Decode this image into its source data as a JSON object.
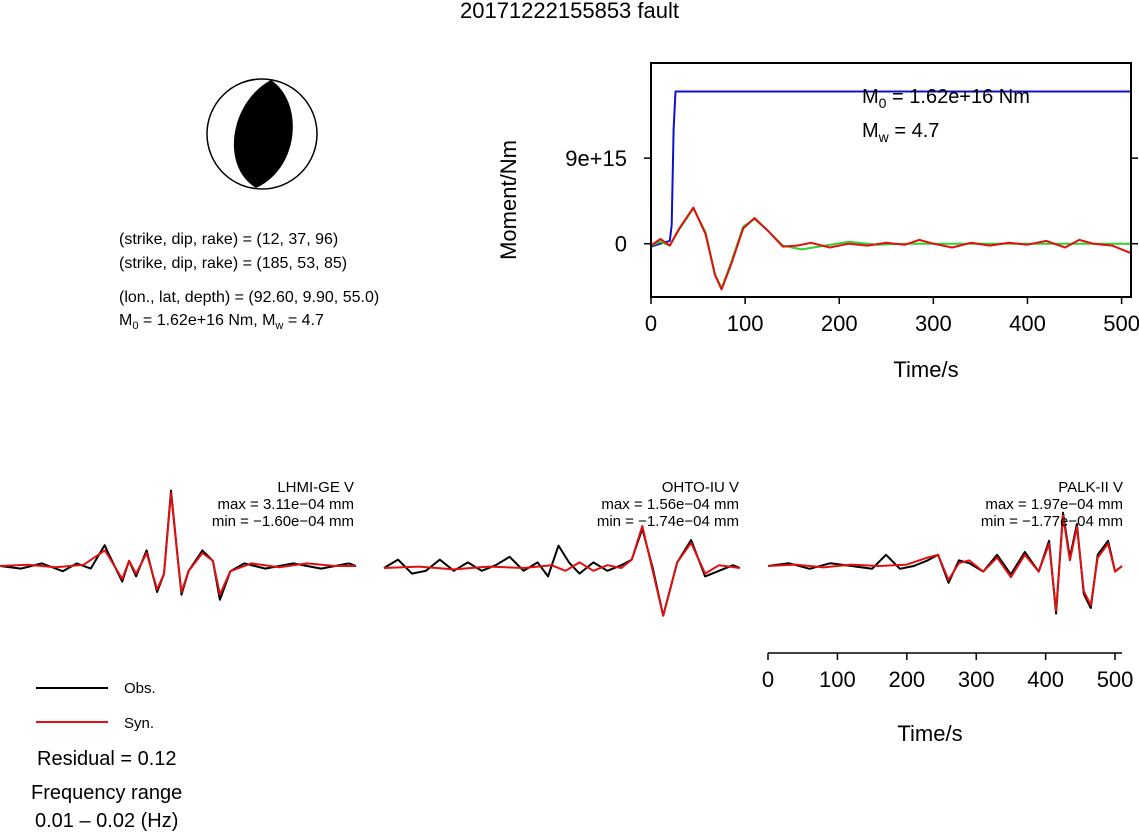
{
  "title": "20171222155853 fault",
  "info": {
    "strike_dip_rake_1": "(strike, dip, rake) = (12, 37, 96)",
    "strike_dip_rake_2": "(strike, dip, rake) = (185, 53, 85)",
    "lon_lat_depth": "(lon., lat, depth) = (92.60, 9.90, 55.0)",
    "m0_prefix": "M",
    "m0_sub": "0",
    "m0_text": " = 1.62e+16 Nm, M",
    "mw_sub": "w",
    "mw_text": " = 4.7"
  },
  "legend": {
    "obs_label": "Obs.",
    "syn_label": "Syn.",
    "residual": "Residual = 0.12",
    "freq_title": "Frequency range",
    "freq_value": "0.01 – 0.02 (Hz)"
  },
  "colors": {
    "obs": "#000000",
    "syn": "#e01010",
    "moment": "#1010d0",
    "stf": "#30d030",
    "stf_syn": "#e01010"
  },
  "chart_data": [
    {
      "type": "line",
      "title": "",
      "xlabel": "Time/s",
      "ylabel": "Moment/Nm",
      "xlim": [
        0,
        510
      ],
      "ylim": [
        -5600000000000000.0,
        1.9e+16
      ],
      "x_ticks": [
        0,
        100,
        200,
        300,
        400,
        500
      ],
      "x_tick_labels": [
        "0",
        "100",
        "200",
        "300",
        "400",
        "500"
      ],
      "y_ticks": [
        0,
        9000000000000000.0
      ],
      "y_tick_labels": [
        "0",
        "9e+15"
      ],
      "annotation_m0": {
        "prefix": "M",
        "sub": "0",
        "text": " = 1.62e+16 Nm"
      },
      "annotation_mw": {
        "prefix": "M",
        "sub": "w",
        "text": " = 4.7"
      },
      "series": [
        {
          "color": "#1010d0",
          "x": [
            0,
            10,
            20,
            22,
            24,
            26,
            510
          ],
          "y": [
            -300000000000000.0,
            0,
            300000000000000.0,
            2000000000000000.0,
            1.2e+16,
            1.6e+16,
            1.6e+16
          ]
        },
        {
          "color": "#30d030",
          "x": [
            0,
            10,
            20,
            30,
            45,
            58,
            68,
            75,
            85,
            98,
            110,
            125,
            140,
            160,
            185,
            210,
            240,
            270,
            300,
            330,
            360,
            390,
            420,
            450,
            480,
            510
          ],
          "y": [
            -200000000000000.0,
            200000000000000.0,
            -200000000000000.0,
            1500000000000000.0,
            3700000000000000.0,
            1200000000000000.0,
            -3200000000000000.0,
            -4700000000000000.0,
            -2000000000000000.0,
            1800000000000000.0,
            2600000000000000.0,
            1300000000000000.0,
            -200000000000000.0,
            -600000000000000.0,
            -200000000000000.0,
            200000000000000.0,
            -100000000000000.0,
            0,
            0,
            0,
            0,
            0,
            0,
            0,
            0,
            0
          ]
        },
        {
          "color": "#e01010",
          "x": [
            0,
            10,
            20,
            30,
            45,
            58,
            68,
            75,
            85,
            98,
            110,
            125,
            140,
            155,
            170,
            190,
            210,
            230,
            250,
            270,
            285,
            300,
            320,
            340,
            360,
            380,
            400,
            420,
            440,
            455,
            470,
            490,
            510
          ],
          "y": [
            -200000000000000.0,
            500000000000000.0,
            -200000000000000.0,
            1600000000000000.0,
            3800000000000000.0,
            1000000000000000.0,
            -3300000000000000.0,
            -4800000000000000.0,
            -2200000000000000.0,
            1600000000000000.0,
            2700000000000000.0,
            1300000000000000.0,
            -300000000000000.0,
            -200000000000000.0,
            100000000000000.0,
            -400000000000000.0,
            0,
            -200000000000000.0,
            100000000000000.0,
            -100000000000000.0,
            400000000000000.0,
            0,
            -400000000000000.0,
            100000000000000.0,
            -200000000000000.0,
            100000000000000.0,
            -100000000000000.0,
            300000000000000.0,
            -400000000000000.0,
            400000000000000.0,
            0,
            -200000000000000.0,
            -1000000000000000.0
          ]
        }
      ]
    },
    {
      "type": "line",
      "station": "LHMI-GE V",
      "max": "max = 3.11e−04 mm",
      "min": "min = −1.60e−04 mm",
      "xlim": [
        0,
        510
      ],
      "ylim": [
        -1.6,
        3.11
      ],
      "series": [
        {
          "name": "Obs.",
          "color": "#000000",
          "x": [
            0,
            30,
            60,
            90,
            110,
            130,
            150,
            155,
            175,
            185,
            195,
            210,
            225,
            235,
            245,
            255,
            260,
            270,
            290,
            305,
            315,
            330,
            350,
            380,
            420,
            460,
            500,
            510
          ],
          "y": [
            0,
            -0.1,
            0.1,
            -0.2,
            0.1,
            -0.1,
            0.8,
            0.5,
            -0.6,
            0.2,
            -0.4,
            0.6,
            -1.0,
            -0.3,
            2.9,
            0.2,
            -1.1,
            -0.2,
            0.6,
            0.2,
            -1.3,
            -0.2,
            0.1,
            -0.1,
            0.1,
            -0.1,
            0.1,
            0
          ]
        },
        {
          "name": "Syn.",
          "color": "#e01010",
          "x": [
            0,
            40,
            80,
            120,
            150,
            155,
            175,
            185,
            195,
            210,
            225,
            235,
            245,
            255,
            260,
            270,
            290,
            305,
            315,
            330,
            360,
            400,
            440,
            480,
            510
          ],
          "y": [
            0,
            0.05,
            -0.05,
            0.05,
            0.6,
            0.4,
            -0.5,
            0.2,
            -0.3,
            0.5,
            -0.9,
            -0.3,
            2.8,
            0.2,
            -1.0,
            -0.2,
            0.5,
            0.2,
            -1.1,
            -0.2,
            0.1,
            -0.05,
            0.1,
            0,
            0
          ]
        }
      ]
    },
    {
      "type": "line",
      "station": "OHTO-IU V",
      "max": "max = 1.56e−04 mm",
      "min": "min = −1.74e−04 mm",
      "xlim": [
        0,
        510
      ],
      "ylim": [
        -1.74,
        1.56
      ],
      "series": [
        {
          "name": "Obs.",
          "color": "#000000",
          "x": [
            0,
            20,
            40,
            60,
            80,
            100,
            120,
            140,
            160,
            180,
            200,
            220,
            235,
            250,
            265,
            280,
            300,
            320,
            340,
            355,
            370,
            385,
            400,
            420,
            440,
            460,
            480,
            500,
            510
          ],
          "y": [
            0,
            0.3,
            -0.2,
            -0.1,
            0.3,
            -0.1,
            0.2,
            -0.1,
            0.1,
            0.4,
            -0.1,
            0.2,
            -0.3,
            0.8,
            0.2,
            -0.2,
            0.2,
            -0.1,
            0.1,
            0.3,
            1.4,
            0.0,
            -1.7,
            0.2,
            1.0,
            -0.3,
            -0.1,
            0.1,
            0
          ]
        },
        {
          "name": "Syn.",
          "color": "#e01010",
          "x": [
            0,
            50,
            100,
            150,
            200,
            240,
            260,
            280,
            300,
            320,
            340,
            355,
            370,
            385,
            400,
            420,
            440,
            460,
            480,
            510
          ],
          "y": [
            0,
            0.05,
            -0.05,
            0.05,
            0,
            0.1,
            -0.1,
            0.2,
            -0.1,
            0.1,
            0.0,
            0.3,
            1.5,
            -0.1,
            -1.7,
            0.2,
            0.9,
            -0.2,
            0.1,
            0
          ]
        }
      ]
    },
    {
      "type": "line",
      "station": "PALK-II V",
      "max": "max = 1.97e−04 mm",
      "min": "min = −1.77e−04 mm",
      "xlabel": "Time/s",
      "xlim": [
        0,
        510
      ],
      "ylim": [
        -1.77,
        1.97
      ],
      "x_ticks": [
        0,
        100,
        200,
        300,
        400,
        500
      ],
      "x_tick_labels": [
        "0",
        "100",
        "200",
        "300",
        "400",
        "500"
      ],
      "series": [
        {
          "name": "Obs.",
          "color": "#000000",
          "x": [
            0,
            30,
            60,
            90,
            120,
            150,
            170,
            190,
            210,
            230,
            245,
            260,
            275,
            290,
            310,
            330,
            350,
            370,
            390,
            405,
            415,
            425,
            435,
            445,
            455,
            465,
            475,
            490,
            500,
            510
          ],
          "y": [
            0,
            0.1,
            -0.1,
            0.1,
            0.0,
            -0.1,
            0.4,
            -0.1,
            0.0,
            0.2,
            0.4,
            -0.6,
            0.2,
            0.1,
            -0.2,
            0.4,
            -0.3,
            0.5,
            -0.2,
            0.9,
            -1.7,
            1.9,
            0.3,
            1.5,
            -1.0,
            -1.5,
            0.4,
            0.9,
            -0.2,
            0
          ]
        },
        {
          "name": "Syn.",
          "color": "#e01010",
          "x": [
            0,
            40,
            80,
            120,
            160,
            200,
            230,
            245,
            260,
            275,
            290,
            310,
            330,
            350,
            370,
            390,
            405,
            415,
            425,
            435,
            445,
            455,
            465,
            475,
            490,
            500,
            510
          ],
          "y": [
            0,
            0.05,
            -0.05,
            0.05,
            0,
            0.05,
            0.3,
            0.4,
            -0.5,
            0.1,
            0.2,
            -0.2,
            0.3,
            -0.4,
            0.4,
            -0.2,
            0.8,
            -1.6,
            1.8,
            0.2,
            1.4,
            -0.9,
            -1.4,
            0.3,
            0.8,
            -0.2,
            0
          ]
        }
      ]
    }
  ]
}
